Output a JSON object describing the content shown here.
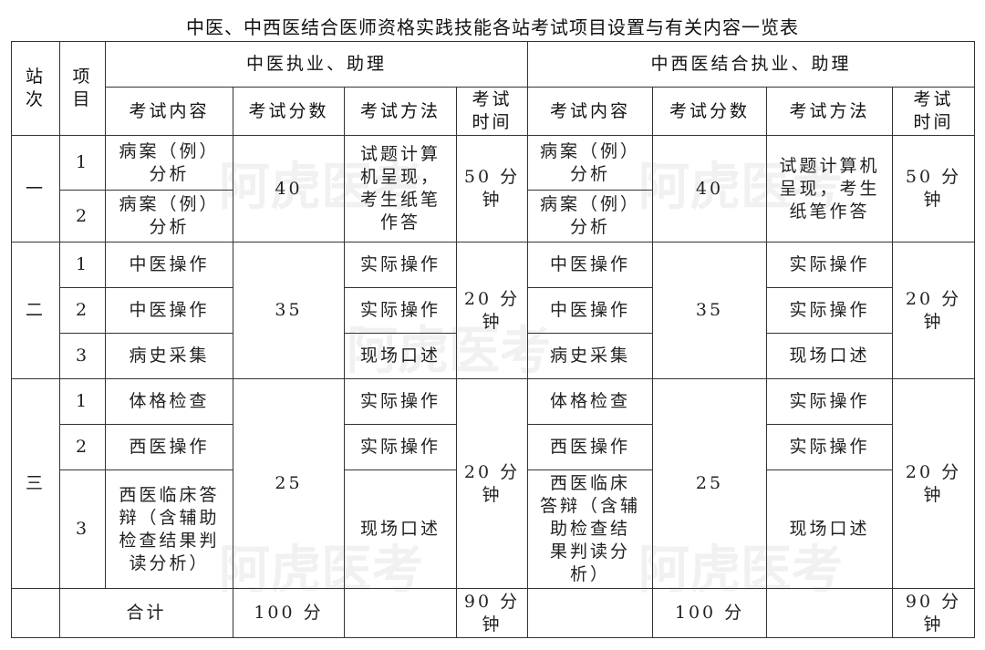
{
  "title": "中医、中西医结合医师资格实践技能各站考试项目设置与有关内容一览表",
  "header": {
    "station": "站\n次",
    "item": "项\n目",
    "group_tcm": "中医执业、助理",
    "group_integrated": "中西医结合执业、助理",
    "content": "考试内容",
    "score": "考试分数",
    "method": "考试方法",
    "time": "考试\n时间"
  },
  "stations": [
    {
      "name": "一",
      "items": [
        "1",
        "2"
      ],
      "tcm": {
        "contents": [
          "病案（例）\n分析",
          "病案（例）\n分析"
        ],
        "score": "40",
        "method": "试题计算\n机呈现，\n考生纸笔\n作答",
        "time": "50 分\n钟"
      },
      "integrated": {
        "contents": [
          "病案（例）\n分析",
          "病案（例）\n分析"
        ],
        "score": "40",
        "method": "试题计算机\n呈现，考生\n纸笔作答",
        "time": "50 分\n钟"
      }
    },
    {
      "name": "二",
      "items": [
        "1",
        "2",
        "3"
      ],
      "tcm": {
        "contents": [
          "中医操作",
          "中医操作",
          "病史采集"
        ],
        "score": "35",
        "methods": [
          "实际操作",
          "实际操作",
          "现场口述"
        ],
        "time": "20 分\n钟"
      },
      "integrated": {
        "contents": [
          "中医操作",
          "中医操作",
          "病史采集"
        ],
        "score": "35",
        "methods": [
          "实际操作",
          "实际操作",
          "现场口述"
        ],
        "time": "20 分\n钟"
      }
    },
    {
      "name": "三",
      "items": [
        "1",
        "2",
        "3"
      ],
      "tcm": {
        "contents": [
          "体格检查",
          "西医操作",
          "西医临床答\n辩（含辅助\n检查结果判\n读分析）"
        ],
        "score": "25",
        "methods": [
          "实际操作",
          "实际操作",
          "现场口述"
        ],
        "time": "20 分\n钟"
      },
      "integrated": {
        "contents": [
          "体格检查",
          "西医操作",
          "西医临床\n答辩（含辅\n助检查结\n果判读分\n析）"
        ],
        "score": "25",
        "methods": [
          "实际操作",
          "实际操作",
          "现场口述"
        ],
        "time": "20 分\n钟"
      }
    }
  ],
  "total": {
    "label": "合计",
    "tcm_score": "100 分",
    "tcm_time": "90 分\n钟",
    "integrated_score": "100 分",
    "integrated_time": "90 分\n钟"
  },
  "watermark": "阿虎医考"
}
